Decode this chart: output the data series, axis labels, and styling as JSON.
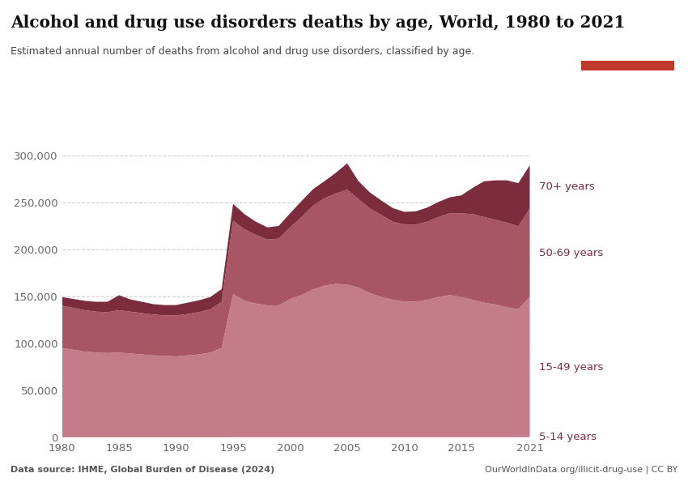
{
  "title": "Alcohol and drug use disorders deaths by age, World, 1980 to 2021",
  "subtitle": "Estimated annual number of deaths from alcohol and drug use disorders, classified by age.",
  "source_left": "Data source: IHME, Global Burden of Disease (2024)",
  "source_right": "OurWorldInData.org/illicit-drug-use | CC BY",
  "years": [
    1980,
    1981,
    1982,
    1983,
    1984,
    1985,
    1986,
    1987,
    1988,
    1989,
    1990,
    1991,
    1992,
    1993,
    1994,
    1995,
    1996,
    1997,
    1998,
    1999,
    2000,
    2001,
    2002,
    2003,
    2004,
    2005,
    2006,
    2007,
    2008,
    2009,
    2010,
    2011,
    2012,
    2013,
    2014,
    2015,
    2016,
    2017,
    2018,
    2019,
    2020,
    2021
  ],
  "age_5_14": [
    200,
    200,
    200,
    200,
    200,
    200,
    200,
    200,
    200,
    200,
    200,
    200,
    200,
    200,
    200,
    300,
    300,
    300,
    300,
    300,
    300,
    300,
    300,
    300,
    300,
    300,
    300,
    300,
    300,
    300,
    300,
    300,
    300,
    300,
    300,
    300,
    300,
    300,
    300,
    300,
    300,
    300
  ],
  "age_15_49": [
    95000,
    93000,
    91000,
    90000,
    89500,
    90000,
    89000,
    88000,
    87000,
    86500,
    86000,
    87000,
    88000,
    90000,
    95000,
    152000,
    145000,
    142000,
    140000,
    140000,
    147000,
    151000,
    157000,
    161000,
    163000,
    162000,
    159000,
    153000,
    149000,
    146000,
    144000,
    144000,
    146000,
    149000,
    151000,
    149000,
    146000,
    143000,
    141000,
    138000,
    136000,
    149000
  ],
  "age_50_69": [
    45000,
    44500,
    44000,
    43500,
    43500,
    45000,
    44500,
    44000,
    43500,
    43000,
    43500,
    44000,
    45000,
    46000,
    49000,
    78000,
    76000,
    73000,
    70000,
    71000,
    76000,
    83000,
    89000,
    93000,
    96000,
    101000,
    94000,
    90000,
    87000,
    83000,
    82000,
    82000,
    83000,
    85000,
    87000,
    89000,
    91000,
    91000,
    90000,
    90000,
    88000,
    94000
  ],
  "age_70plus": [
    9000,
    9500,
    10000,
    10500,
    11000,
    16000,
    13000,
    12000,
    11000,
    11000,
    11000,
    12000,
    12500,
    13000,
    13500,
    18000,
    16000,
    14000,
    13000,
    13500,
    15000,
    17000,
    17500,
    18000,
    22000,
    28000,
    19000,
    17000,
    15500,
    14500,
    13500,
    14000,
    15000,
    16000,
    17000,
    19000,
    28000,
    38000,
    42000,
    45000,
    46000,
    46000
  ],
  "colors": {
    "5_14": "#c9717a",
    "15_49": "#c47b8a",
    "50_69": "#a85565",
    "70plus": "#7b2d3e"
  },
  "ylim": [
    0,
    310000
  ],
  "yticks": [
    0,
    50000,
    100000,
    150000,
    200000,
    250000,
    300000
  ],
  "background_color": "#ffffff",
  "grid_color": "#c8c8c8",
  "label_color": "#7b2d3e",
  "owid_box_color": "#1a3558",
  "owid_box_red": "#c0392b",
  "tick_color": "#666666"
}
